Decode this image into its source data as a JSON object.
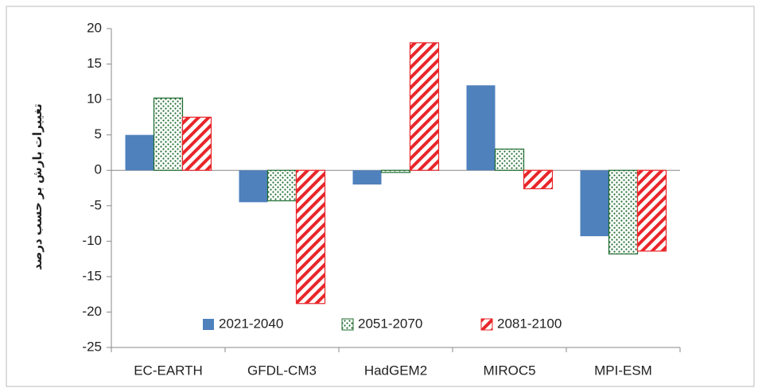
{
  "chart_data": {
    "type": "bar",
    "y_axis_label": "تغییرات بارش بر حسب درصد",
    "categories": [
      "EC-EARTH",
      "GFDL-CM3",
      "HadGEM2",
      "MIROC5",
      "MPI-ESM"
    ],
    "series": [
      {
        "name": "2021-2040",
        "color": "#4f81bd",
        "pattern": "solid",
        "values": [
          5,
          -4.5,
          -2,
          12,
          -9.3
        ]
      },
      {
        "name": "2051-2070",
        "color": "#1e6b2e",
        "pattern": "dots",
        "values": [
          10.2,
          -4.3,
          -0.3,
          3,
          -11.8
        ]
      },
      {
        "name": "2081-2100",
        "color": "#e8262a",
        "pattern": "stripes",
        "values": [
          7.5,
          -18.8,
          18,
          -2.6,
          -11.4
        ]
      }
    ],
    "ylim": [
      -25,
      20
    ],
    "yticks": [
      -25,
      -20,
      -15,
      -10,
      -5,
      0,
      5,
      10,
      15,
      20
    ],
    "legend": "bottom"
  }
}
